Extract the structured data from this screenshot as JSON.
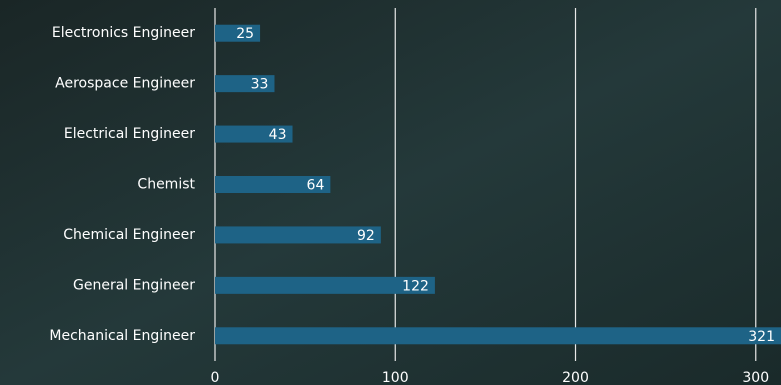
{
  "chart_data": {
    "type": "bar",
    "orientation": "horizontal",
    "categories": [
      "Electronics Engineer",
      "Aerospace Engineer",
      "Electrical Engineer",
      "Chemist",
      "Chemical Engineer",
      "General Engineer",
      "Mechanical Engineer"
    ],
    "values": [
      25,
      33,
      43,
      64,
      92,
      122,
      321
    ],
    "color": "#1e6386",
    "xlim": [
      0,
      314
    ],
    "xticks": [
      0,
      100,
      200,
      300
    ],
    "grid": true
  }
}
